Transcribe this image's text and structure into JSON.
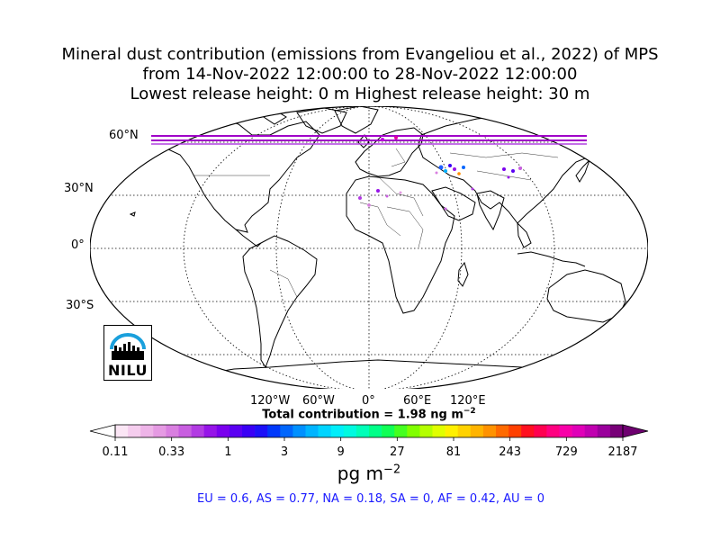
{
  "title": {
    "line1": "Mineral dust contribution (emissions from Evangeliou et al., 2022) of MPS",
    "line2": "from 14-Nov-2022 12:00:00 to 28-Nov-2022 12:00:00",
    "line3": "Lowest release height: 0 m      Highest release height: 30 m"
  },
  "map": {
    "projection": "robinson",
    "lat_labels": [
      "60°N",
      "30°N",
      "0°",
      "30°S"
    ],
    "lon_labels": [
      "120°W",
      "60°W",
      "0°",
      "60°E",
      "120°E"
    ],
    "grid": true,
    "station_band_color": "#a000c8"
  },
  "total_contribution": {
    "label": "Total contribution = 1.98 ng m",
    "exponent": "−2"
  },
  "colorbar": {
    "ticks": [
      "0.11",
      "0.33",
      "1",
      "3",
      "9",
      "27",
      "81",
      "243",
      "729",
      "2187"
    ],
    "colors": [
      "#fbe6f5",
      "#f5cdee",
      "#eeb4e8",
      "#e59ae3",
      "#d97fe0",
      "#c85ee0",
      "#b23be3",
      "#9614e8",
      "#7a00ee",
      "#5a00f2",
      "#3a00f5",
      "#1c10f8",
      "#0038fb",
      "#0066fd",
      "#0090ff",
      "#00b4ff",
      "#00d4ff",
      "#00eefa",
      "#00fae0",
      "#00ffb8",
      "#00ff88",
      "#10ff55",
      "#45ff20",
      "#80ff00",
      "#b4ff00",
      "#e0ff00",
      "#fff000",
      "#ffd200",
      "#ffb400",
      "#ff9200",
      "#ff6a00",
      "#ff4000",
      "#ff1020",
      "#ff0050",
      "#ff0080",
      "#f800a8",
      "#e000b8",
      "#c000b0",
      "#9a009c",
      "#780078"
    ],
    "unit": "pg m",
    "unit_exponent": "−2"
  },
  "regions": "EU = 0.6,  AS = 0.77,  NA = 0.18,  SA = 0,  AF = 0.42,  AU = 0",
  "logo": {
    "text": "NILU"
  }
}
